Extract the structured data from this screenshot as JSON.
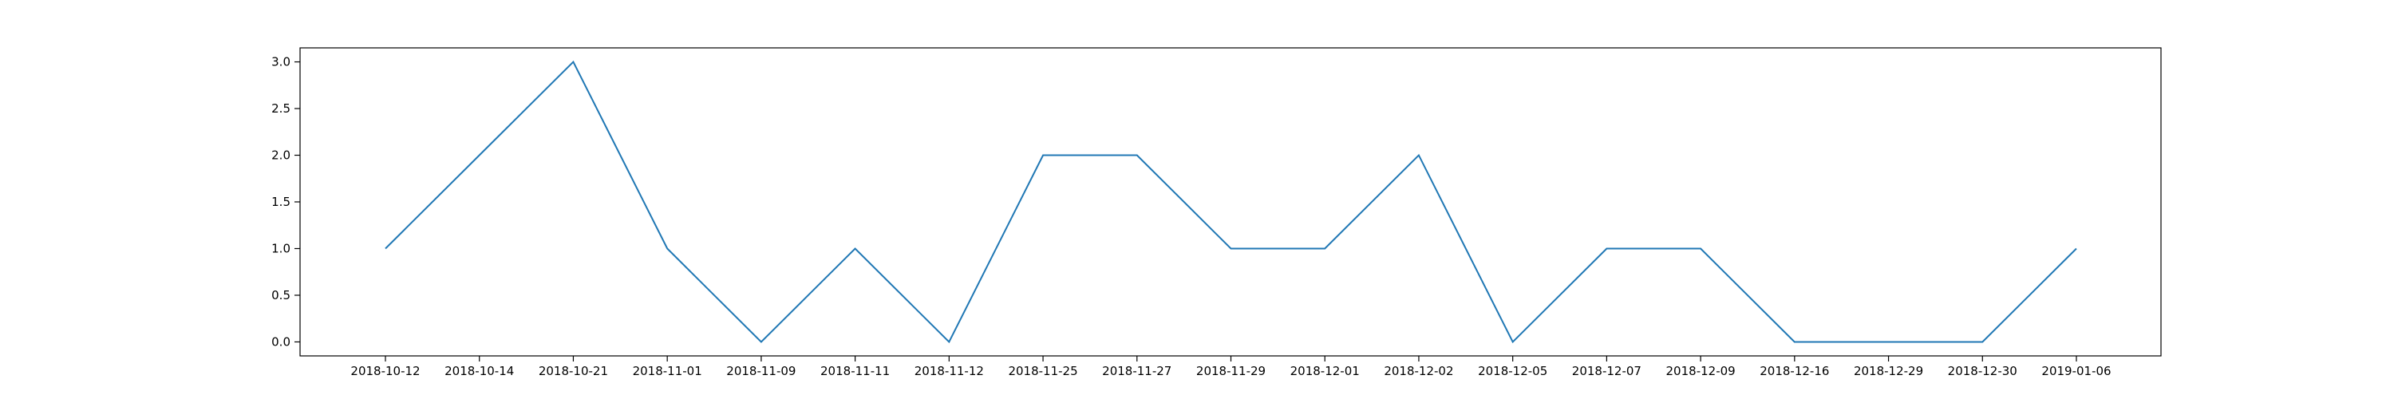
{
  "chart_data": {
    "type": "line",
    "categories": [
      "2018-10-12",
      "2018-10-14",
      "2018-10-21",
      "2018-11-01",
      "2018-11-09",
      "2018-11-11",
      "2018-11-12",
      "2018-11-25",
      "2018-11-27",
      "2018-11-29",
      "2018-12-01",
      "2018-12-02",
      "2018-12-05",
      "2018-12-07",
      "2018-12-09",
      "2018-12-16",
      "2018-12-29",
      "2018-12-30",
      "2019-01-06"
    ],
    "series": [
      {
        "values": [
          1,
          2,
          3,
          1,
          0,
          1,
          0,
          2,
          2,
          1,
          1,
          2,
          0,
          1,
          1,
          0,
          0,
          0,
          1
        ],
        "color": "#1f77b4"
      }
    ],
    "yticks": [
      "0.0",
      "0.5",
      "1.0",
      "1.5",
      "2.0",
      "2.5",
      "3.0"
    ],
    "ylim": [
      -0.15,
      3.15
    ],
    "grid": false,
    "legend": "none"
  }
}
